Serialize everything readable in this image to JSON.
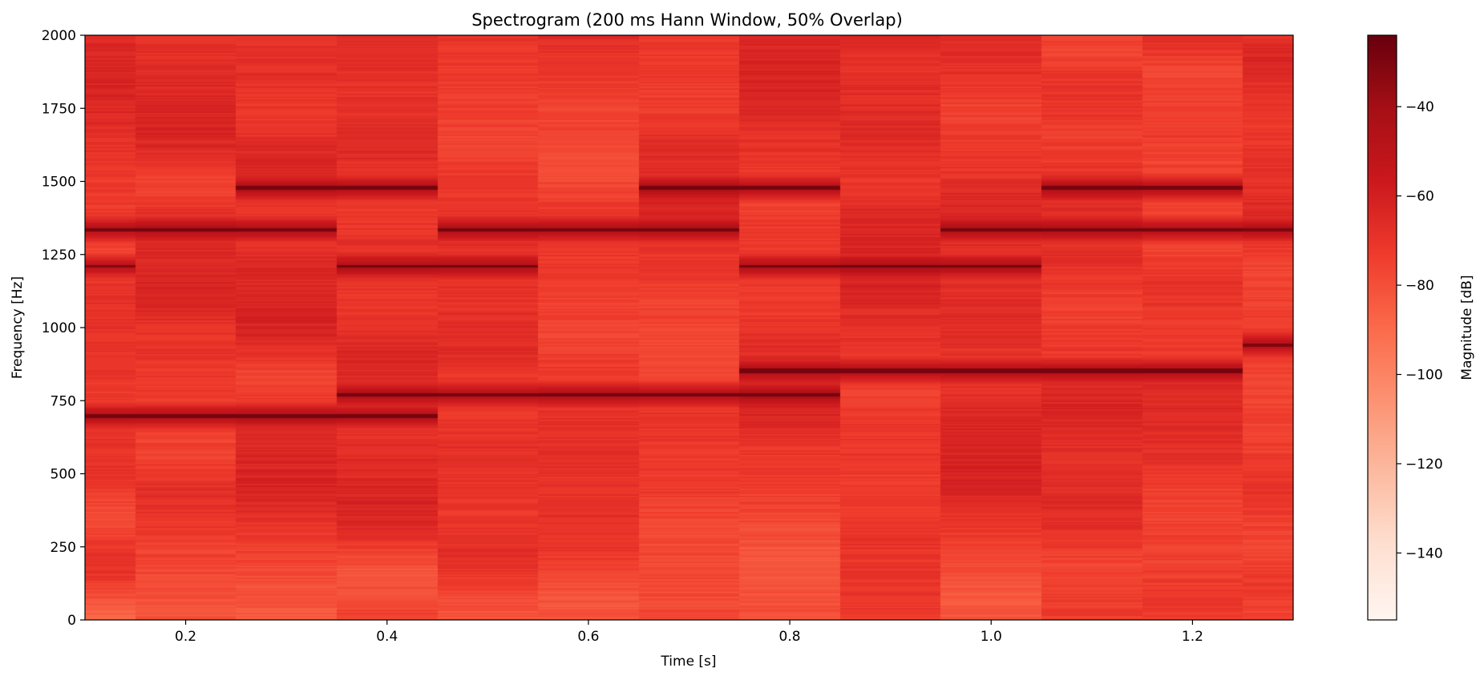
{
  "chart_data": {
    "type": "heatmap",
    "title": "Spectrogram (200 ms Hann Window, 50% Overlap)",
    "xlabel": "Time [s]",
    "ylabel": "Frequency [Hz]",
    "xlim": [
      0.1,
      1.3
    ],
    "ylim": [
      0,
      2000
    ],
    "x_ticks": [
      0.2,
      0.4,
      0.6,
      0.8,
      1.0,
      1.2
    ],
    "x_tick_labels": [
      "0.2",
      "0.4",
      "0.6",
      "0.8",
      "1.0",
      "1.2"
    ],
    "y_ticks": [
      0,
      250,
      500,
      750,
      1000,
      1250,
      1500,
      1750,
      2000
    ],
    "y_tick_labels": [
      "0",
      "250",
      "500",
      "750",
      "1000",
      "1250",
      "1500",
      "1750",
      "2000"
    ],
    "colormap": "Reds",
    "colorbar": {
      "label": "Magnitude [dB]",
      "range": [
        -155,
        -24
      ],
      "ticks": [
        -40,
        -60,
        -80,
        -100,
        -120,
        -140
      ],
      "tick_labels": [
        "−40",
        "−60",
        "−80",
        "−100",
        "−120",
        "−140"
      ]
    },
    "time_frames": [
      0.1,
      0.2,
      0.3,
      0.4,
      0.5,
      0.6,
      0.7,
      0.8,
      0.9,
      1.0,
      1.1,
      1.2,
      1.3
    ],
    "frequency_step_hz": 5,
    "background_level_db": -70,
    "tones": [
      {
        "t_start": 0.1,
        "t_end": 0.45,
        "freq_hz": 697,
        "level_db": -28
      },
      {
        "t_start": 0.35,
        "t_end": 0.85,
        "freq_hz": 770,
        "level_db": -28
      },
      {
        "t_start": 0.8,
        "t_end": 1.25,
        "freq_hz": 852,
        "level_db": -28
      },
      {
        "t_start": 1.25,
        "t_end": 1.3,
        "freq_hz": 941,
        "level_db": -30
      },
      {
        "t_start": 0.1,
        "t_end": 0.15,
        "freq_hz": 1209,
        "level_db": -32
      },
      {
        "t_start": 0.35,
        "t_end": 0.55,
        "freq_hz": 1209,
        "level_db": -28
      },
      {
        "t_start": 0.75,
        "t_end": 1.05,
        "freq_hz": 1209,
        "level_db": -28
      },
      {
        "t_start": 0.1,
        "t_end": 0.3,
        "freq_hz": 1336,
        "level_db": -28
      },
      {
        "t_start": 0.5,
        "t_end": 0.75,
        "freq_hz": 1336,
        "level_db": -28
      },
      {
        "t_start": 0.95,
        "t_end": 1.2,
        "freq_hz": 1336,
        "level_db": -28
      },
      {
        "t_start": 1.25,
        "t_end": 1.3,
        "freq_hz": 1336,
        "level_db": -30
      },
      {
        "t_start": 0.25,
        "t_end": 0.45,
        "freq_hz": 1477,
        "level_db": -28
      },
      {
        "t_start": 0.65,
        "t_end": 0.85,
        "freq_hz": 1477,
        "level_db": -28
      },
      {
        "t_start": 1.05,
        "t_end": 1.25,
        "freq_hz": 1477,
        "level_db": -28
      }
    ]
  }
}
